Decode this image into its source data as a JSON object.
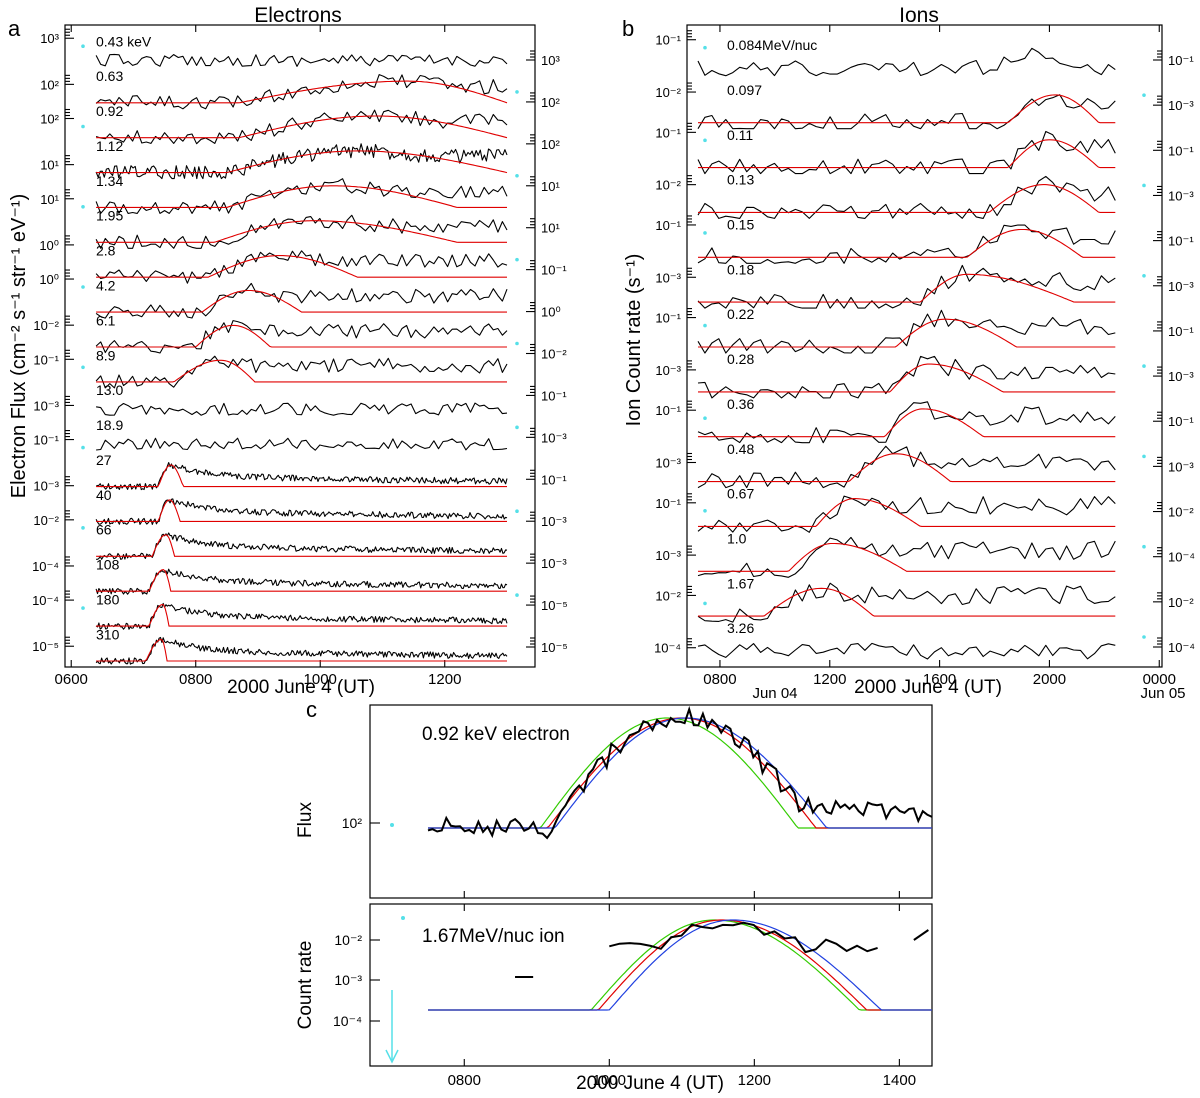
{
  "colors": {
    "observed": "#000000",
    "fit": "#e00000",
    "fit_alt_green": "#33cc00",
    "fit_alt_blue": "#2040e0",
    "marker": "#55e0e8"
  },
  "chart_data": [
    {
      "panel_letter": "a",
      "type": "line",
      "title": "Electrons",
      "ylabel": "Electron Flux (cm⁻² s⁻¹ str⁻¹ eV⁻¹)",
      "xlabel": "2000 June 4 (UT)",
      "x_ticks": [
        "0600",
        "0800",
        "1000",
        "1200"
      ],
      "xlim": [
        590,
        1345
      ],
      "left_tick_labels": [
        "10³",
        "10²",
        "10²",
        "10¹",
        "10¹",
        "10⁰",
        "10⁰",
        "10⁻²",
        "10⁻¹",
        "10⁻³",
        "10⁻¹",
        "10⁻³",
        "10⁻²",
        "10⁻⁴",
        "10⁻⁴",
        "10⁻⁵"
      ],
      "right_tick_labels": [
        "10³",
        "10²",
        "10²",
        "10¹",
        "10¹",
        "10⁻¹",
        "10⁰",
        "10⁻²",
        "10⁻¹",
        "10⁻³",
        "10⁻¹",
        "10⁻³",
        "10⁻³",
        "10⁻⁵",
        "10⁻⁵"
      ],
      "series": [
        {
          "name": "0.43 keV",
          "onset": null,
          "peak": null,
          "end": null
        },
        {
          "name": "0.63",
          "onset": 870,
          "peak": 1140,
          "end": 1300
        },
        {
          "name": "0.92",
          "onset": 870,
          "peak": 1090,
          "end": 1300
        },
        {
          "name": "1.12",
          "onset": 850,
          "peak": 1060,
          "end": 1300
        },
        {
          "name": "1.34",
          "onset": 850,
          "peak": 1020,
          "end": 1220
        },
        {
          "name": "1.95",
          "onset": 830,
          "peak": 990,
          "end": 1220
        },
        {
          "name": "2.8",
          "onset": 820,
          "peak": 935,
          "end": 1060
        },
        {
          "name": "4.2",
          "onset": 810,
          "peak": 885,
          "end": 970
        },
        {
          "name": "6.1",
          "onset": 800,
          "peak": 860,
          "end": 920
        },
        {
          "name": "8.9",
          "onset": 765,
          "peak": 840,
          "end": 895
        },
        {
          "name": "13.0",
          "onset": null,
          "peak": null,
          "end": null
        },
        {
          "name": "18.9",
          "onset": null,
          "peak": null,
          "end": null
        },
        {
          "name": "27",
          "onset": 740,
          "peak": 760,
          "end": 780
        },
        {
          "name": "40",
          "onset": 740,
          "peak": 758,
          "end": 775
        },
        {
          "name": "66",
          "onset": 730,
          "peak": 752,
          "end": 766
        },
        {
          "name": "108",
          "onset": 725,
          "peak": 748,
          "end": 760
        },
        {
          "name": "180",
          "onset": 725,
          "peak": 747,
          "end": 757
        },
        {
          "name": "310",
          "onset": 720,
          "peak": 745,
          "end": 754
        }
      ]
    },
    {
      "panel_letter": "b",
      "type": "line",
      "title": "Ions",
      "ylabel": "Ion Count rate (s⁻¹)",
      "xlabel": "2000 June 4 (UT)",
      "x_ticks": [
        "0800",
        "1200",
        "1600",
        "2000",
        "0000"
      ],
      "x_date_labels": [
        "Jun 04",
        "Jun 05"
      ],
      "xlim": [
        680,
        2410
      ],
      "left_tick_labels": [
        "10⁻¹",
        "10⁻²",
        "10⁻¹",
        "10⁻²",
        "10⁻¹",
        "10⁻³",
        "10⁻¹",
        "10⁻³",
        "10⁻¹",
        "10⁻³",
        "10⁻¹",
        "10⁻³",
        "10⁻²",
        "10⁻⁴"
      ],
      "right_tick_labels": [
        "10⁻¹",
        "10⁻³",
        "10⁻¹",
        "10⁻³",
        "10⁻¹",
        "10⁻³",
        "10⁻¹",
        "10⁻³",
        "10⁻¹",
        "10⁻³",
        "10⁻²",
        "10⁻⁴",
        "10⁻²",
        "10⁻⁴"
      ],
      "series": [
        {
          "name": "0.084MeV/nuc",
          "onset": null,
          "peak": null,
          "end": null
        },
        {
          "name": "0.097",
          "onset": 1850,
          "peak": 2020,
          "end": 2180
        },
        {
          "name": "0.11",
          "onset": 1850,
          "peak": 2000,
          "end": 2180
        },
        {
          "name": "0.13",
          "onset": 1780,
          "peak": 1980,
          "end": 2180
        },
        {
          "name": "0.15",
          "onset": 1700,
          "peak": 1900,
          "end": 2120
        },
        {
          "name": "0.18",
          "onset": 1530,
          "peak": 1700,
          "end": 2090
        },
        {
          "name": "0.22",
          "onset": 1440,
          "peak": 1620,
          "end": 1880
        },
        {
          "name": "0.28",
          "onset": 1420,
          "peak": 1560,
          "end": 1830
        },
        {
          "name": "0.36",
          "onset": 1400,
          "peak": 1540,
          "end": 1760
        },
        {
          "name": "0.48",
          "onset": 1270,
          "peak": 1440,
          "end": 1640
        },
        {
          "name": "0.67",
          "onset": 1150,
          "peak": 1290,
          "end": 1530
        },
        {
          "name": "1.0",
          "onset": 1050,
          "peak": 1210,
          "end": 1480
        },
        {
          "name": "1.67",
          "onset": 960,
          "peak": 1170,
          "end": 1360
        },
        {
          "name": "3.26",
          "onset": null,
          "peak": null,
          "end": null
        }
      ]
    },
    {
      "panel_letter": "c",
      "type": "line",
      "xlabel": "2000 June 4 (UT)",
      "x_ticks": [
        "0800",
        "1000",
        "1200",
        "1400"
      ],
      "xlim": [
        670,
        1445
      ],
      "subplots": [
        {
          "label": "0.92 keV electron",
          "ylabel": "Flux",
          "y_tick_labels": [
            "10²"
          ],
          "fits": [
            {
              "color": "green",
              "onset": 905,
              "peak": 1080,
              "end": 1260
            },
            {
              "color": "red",
              "onset": 915,
              "peak": 1100,
              "end": 1285
            },
            {
              "color": "blue",
              "onset": 925,
              "peak": 1105,
              "end": 1300
            }
          ]
        },
        {
          "label": "1.67MeV/nuc ion",
          "ylabel": "Count rate",
          "y_tick_labels": [
            "10⁻²",
            "10⁻³",
            "10⁻⁴"
          ],
          "fits": [
            {
              "color": "green",
              "onset": 975,
              "peak": 1145,
              "end": 1345
            },
            {
              "color": "red",
              "onset": 985,
              "peak": 1155,
              "end": 1355
            },
            {
              "color": "blue",
              "onset": 1000,
              "peak": 1170,
              "end": 1375
            }
          ]
        }
      ]
    }
  ]
}
